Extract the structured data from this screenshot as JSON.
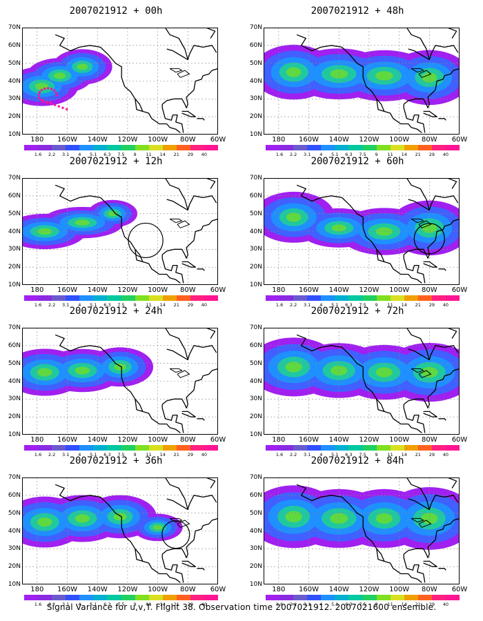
{
  "panels": [
    {
      "title": "2007021912 + 00h"
    },
    {
      "title": "2007021912 + 48h"
    },
    {
      "title": "2007021912 + 12h"
    },
    {
      "title": "2007021912 + 60h"
    },
    {
      "title": "2007021912 + 24h"
    },
    {
      "title": "2007021912 + 72h"
    },
    {
      "title": "2007021912 + 36h"
    },
    {
      "title": "2007021912 + 84h"
    }
  ],
  "lat_labels": [
    "70N",
    "60N",
    "50N",
    "40N",
    "30N",
    "20N",
    "10N"
  ],
  "lon_labels": [
    "180",
    "160W",
    "140W",
    "120W",
    "100W",
    "80W",
    "60W"
  ],
  "colorbar": {
    "levels": [
      "1.6",
      "2.2",
      "3.1",
      "4",
      "5.1",
      "6.3",
      "7.5",
      "9",
      "11",
      "14",
      "21",
      "29",
      "40"
    ],
    "colors": [
      "#a020f0",
      "#8a2be2",
      "#6a5acd",
      "#3050ff",
      "#1e90ff",
      "#00b0d0",
      "#00c8a0",
      "#20d060",
      "#80e020",
      "#d8e020",
      "#f0a000",
      "#ff6020",
      "#ff2080",
      "#ff1493"
    ]
  },
  "caption": "Signal Variance for u,v,T. Flight 38. Observation time 2007021912. 2007021600 ensemble."
}
